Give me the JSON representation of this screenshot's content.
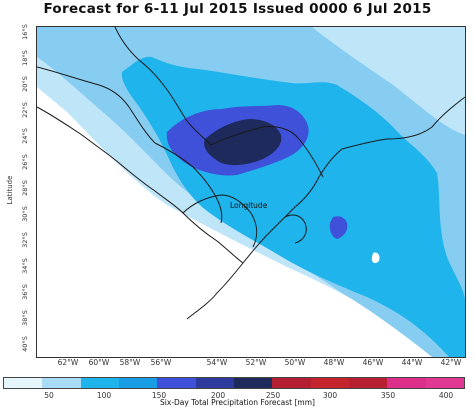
{
  "title": "Forecast for 6-11 Jul 2015 Issued 0000 6 Jul 2015",
  "axes": {
    "xlabel": "Longitude",
    "ylabel": "Latitude",
    "xticks": [
      "62°W",
      "60°W",
      "58°W",
      "56°W",
      "54°W",
      "52°W",
      "50°W",
      "48°W",
      "46°W",
      "44°W",
      "42°W"
    ],
    "yticks": [
      "16°S",
      "18°S",
      "20°S",
      "22°S",
      "24°S",
      "26°S",
      "28°S",
      "30°S",
      "32°S",
      "34°S",
      "36°S",
      "38°S",
      "40°S"
    ]
  },
  "colorbar": {
    "label": "Six-Day Total Precipitation Forecast [mm]",
    "ticks": [
      "50",
      "100",
      "150",
      "200",
      "250",
      "300",
      "350",
      "400"
    ],
    "colors": [
      "#e6f6fd",
      "#a9dcf7",
      "#1fb4ec",
      "#199ee6",
      "#3f51d8",
      "#2d3a9e",
      "#1f2a5c",
      "#b51f32",
      "#c4242c",
      "#b72030",
      "#dc2f89",
      "#e03893"
    ]
  },
  "colors": {
    "light_blue": "#bfe5f8",
    "medium_blue": "#86cdf1",
    "bright_blue": "#1fb4ec",
    "deep_blue": "#3f51d8",
    "navy": "#1f2a5c"
  }
}
